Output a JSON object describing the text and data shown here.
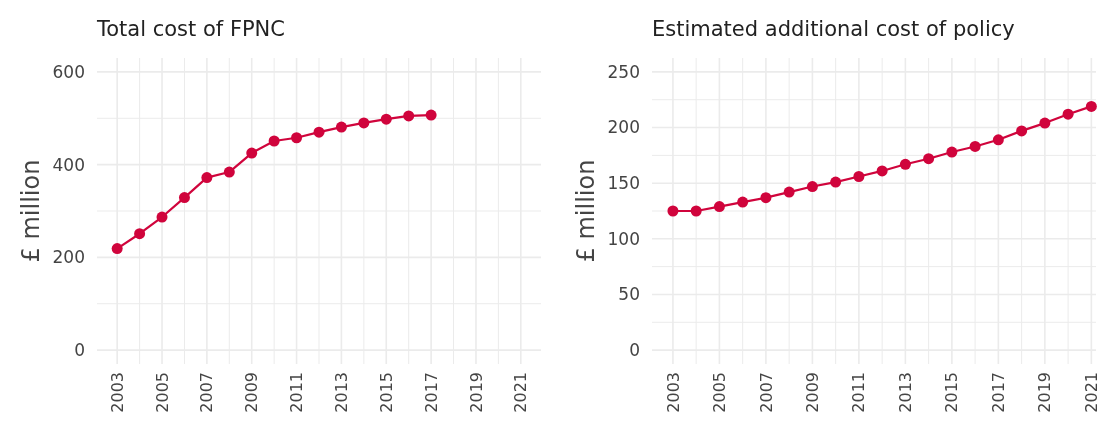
{
  "chart_data": [
    {
      "type": "line",
      "title": "Total cost of FPNC",
      "ylabel": "£ million",
      "x": [
        2003,
        2004,
        2005,
        2006,
        2007,
        2008,
        2009,
        2010,
        2011,
        2012,
        2013,
        2014,
        2015,
        2016,
        2017
      ],
      "series": [
        {
          "color": "#d0043c",
          "values": [
            219,
            251,
            287,
            329,
            372,
            384,
            425,
            451,
            458,
            470,
            481,
            490,
            498,
            505,
            507
          ]
        }
      ],
      "xlim": [
        2002.1,
        2021.9
      ],
      "xticks": [
        2003,
        {
          "value": 2004,
          "label": null
        },
        2005,
        {
          "value": 2006,
          "label": null
        },
        2007,
        {
          "value": 2008,
          "label": null
        },
        2009,
        {
          "value": 2010,
          "label": null
        },
        2011,
        {
          "value": 2012,
          "label": null
        },
        2013,
        {
          "value": 2014,
          "label": null
        },
        2015,
        {
          "value": 2016,
          "label": null
        },
        2017,
        {
          "value": 2018,
          "label": null
        },
        2019,
        {
          "value": 2020,
          "label": null
        },
        2021
      ],
      "ylim": [
        -30,
        630
      ],
      "yticks": [
        0,
        {
          "value": 100,
          "label": null
        },
        200,
        {
          "value": 300,
          "label": null
        },
        400,
        {
          "value": 500,
          "label": null
        },
        600
      ],
      "grid": true,
      "marker": "circle",
      "line_style": "solid"
    },
    {
      "type": "line",
      "title": "Estimated additional cost of policy",
      "ylabel": "£ million",
      "x": [
        2003,
        2004,
        2005,
        2006,
        2007,
        2008,
        2009,
        2010,
        2011,
        2012,
        2013,
        2014,
        2015,
        2016,
        2017,
        2018,
        2019,
        2020,
        2021
      ],
      "series": [
        {
          "color": "#d0043c",
          "values": [
            125,
            125,
            129,
            133,
            137,
            142,
            147,
            151,
            156,
            161,
            167,
            172,
            178,
            183,
            189,
            197,
            204,
            212,
            219
          ]
        }
      ],
      "xlim": [
        2002.1,
        2021.2
      ],
      "xticks": [
        2003,
        {
          "value": 2004,
          "label": null
        },
        2005,
        {
          "value": 2006,
          "label": null
        },
        2007,
        {
          "value": 2008,
          "label": null
        },
        2009,
        {
          "value": 2010,
          "label": null
        },
        2011,
        {
          "value": 2012,
          "label": null
        },
        2013,
        {
          "value": 2014,
          "label": null
        },
        2015,
        {
          "value": 2016,
          "label": null
        },
        2017,
        {
          "value": 2018,
          "label": null
        },
        2019,
        {
          "value": 2020,
          "label": null
        },
        2021
      ],
      "ylim": [
        -12.5,
        262.5
      ],
      "yticks": [
        0,
        {
          "value": 25,
          "label": null
        },
        50,
        {
          "value": 75,
          "label": null
        },
        100,
        {
          "value": 125,
          "label": null
        },
        150,
        {
          "value": 175,
          "label": null
        },
        200,
        {
          "value": 225,
          "label": null
        },
        250
      ],
      "grid": true,
      "marker": "circle",
      "line_style": "solid"
    }
  ]
}
